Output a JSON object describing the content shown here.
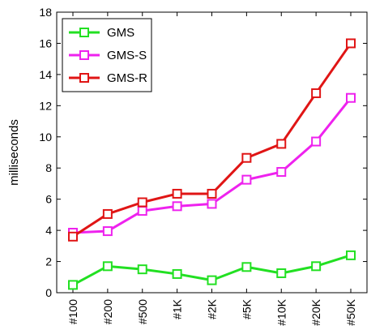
{
  "chart_data": {
    "type": "line",
    "title": "",
    "xlabel": "",
    "ylabel": "milliseconds",
    "ylim": [
      0,
      18
    ],
    "yticks": [
      0,
      2,
      4,
      6,
      8,
      10,
      12,
      14,
      16,
      18
    ],
    "grid": false,
    "legend_position": "top-left",
    "categories": [
      "#100",
      "#200",
      "#500",
      "#1K",
      "#2K",
      "#5K",
      "#10K",
      "#20K",
      "#50K"
    ],
    "series": [
      {
        "name": "GMS",
        "color": "#22e022",
        "values": [
          0.5,
          1.7,
          1.5,
          1.2,
          0.8,
          1.65,
          1.25,
          1.7,
          2.4
        ]
      },
      {
        "name": "GMS-S",
        "color": "#ee22ee",
        "values": [
          3.85,
          3.95,
          5.25,
          5.55,
          5.7,
          7.25,
          7.75,
          9.7,
          12.5
        ]
      },
      {
        "name": "GMS-R",
        "color": "#e01515",
        "values": [
          3.6,
          5.05,
          5.8,
          6.35,
          6.35,
          8.65,
          9.55,
          12.8,
          16.0
        ]
      }
    ]
  }
}
